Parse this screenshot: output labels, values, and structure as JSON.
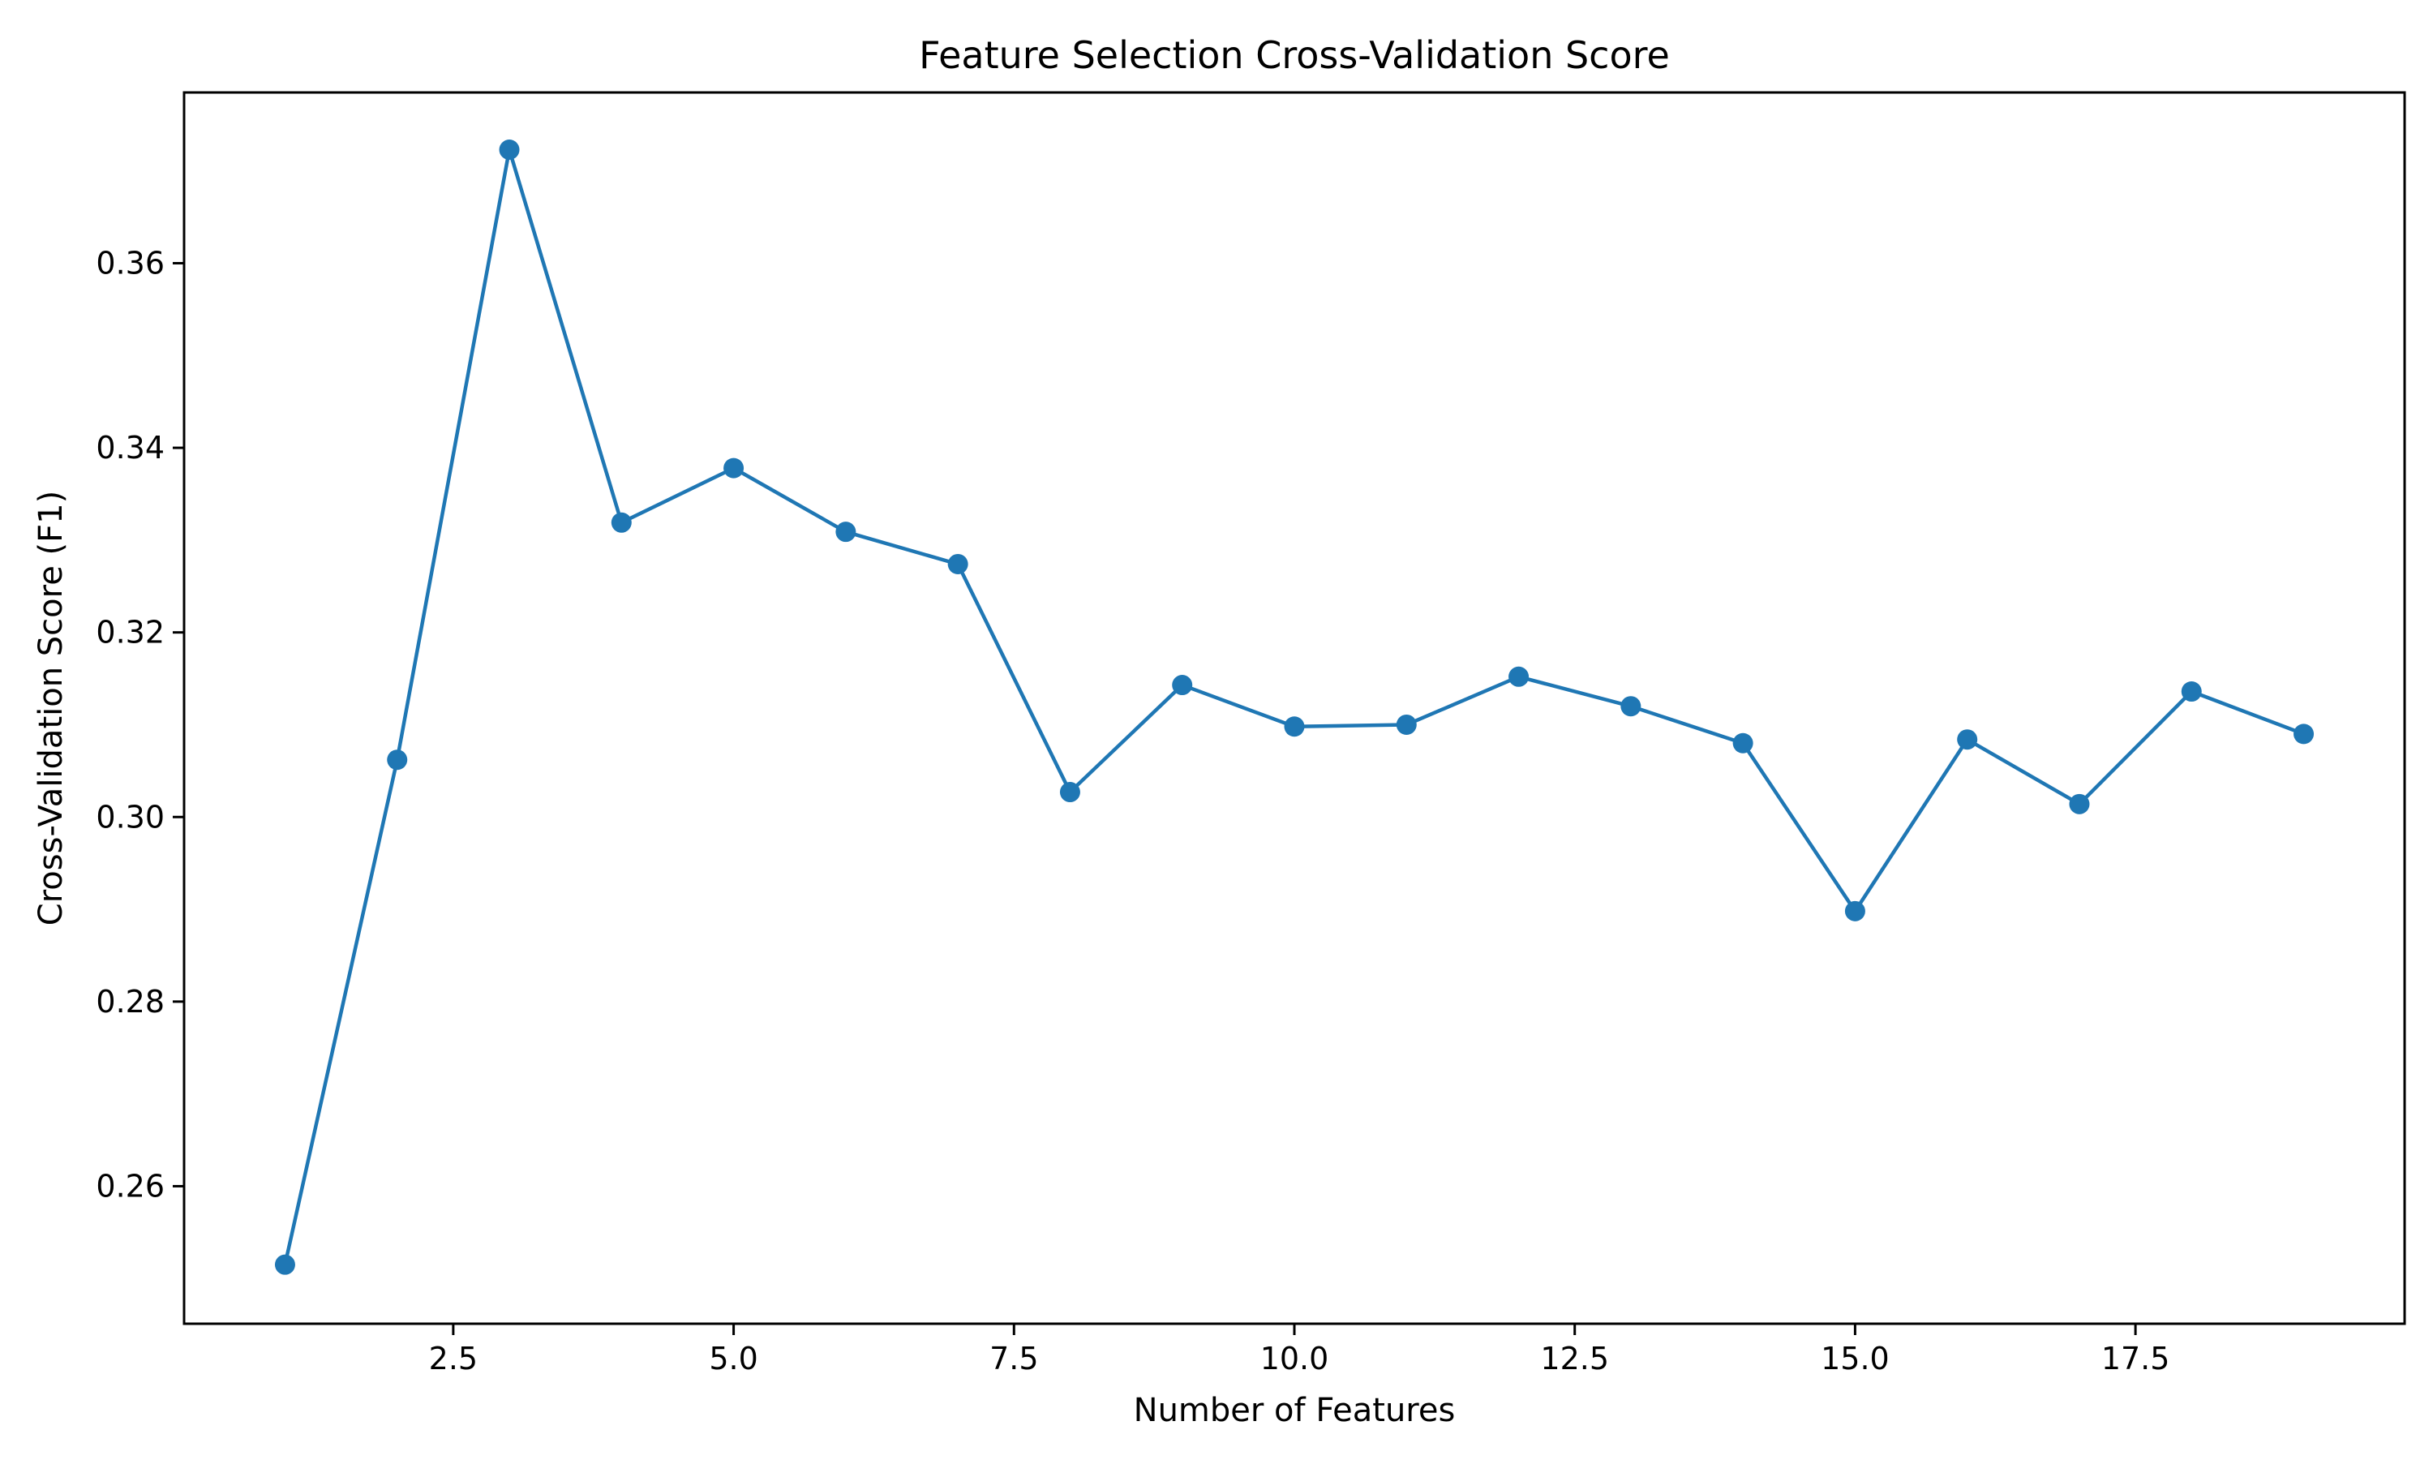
{
  "chart_data": {
    "type": "line",
    "title": "Feature Selection Cross-Validation Score",
    "xlabel": "Number of Features",
    "ylabel": "Cross-Validation Score (F1)",
    "xlim": [
      0.1,
      19.9
    ],
    "ylim": [
      0.2451,
      0.3785
    ],
    "xticks": [
      2.5,
      5.0,
      7.5,
      10.0,
      12.5,
      15.0,
      17.5
    ],
    "xtick_labels": [
      "2.5",
      "5.0",
      "7.5",
      "10.0",
      "12.5",
      "15.0",
      "17.5"
    ],
    "yticks": [
      0.26,
      0.28,
      0.3,
      0.32,
      0.34,
      0.36
    ],
    "ytick_labels": [
      "0.26",
      "0.28",
      "0.30",
      "0.32",
      "0.34",
      "0.36"
    ],
    "grid": false,
    "series": [
      {
        "color": "#1f77b4",
        "marker": "circle",
        "x": [
          1,
          2,
          3,
          4,
          5,
          6,
          7,
          8,
          9,
          10,
          11,
          12,
          13,
          14,
          15,
          16,
          17,
          18,
          19
        ],
        "values": [
          0.2515,
          0.3062,
          0.3723,
          0.3319,
          0.3378,
          0.3309,
          0.3274,
          0.3027,
          0.3143,
          0.3098,
          0.31,
          0.3152,
          0.312,
          0.308,
          0.2898,
          0.3084,
          0.3014,
          0.3136,
          0.309
        ]
      }
    ]
  }
}
